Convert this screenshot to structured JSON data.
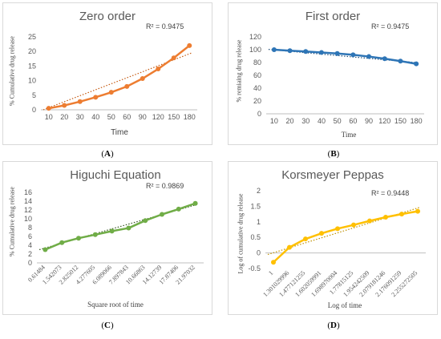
{
  "chart_data": [
    {
      "id": "A",
      "type": "line",
      "title": "Zero order",
      "r2_text": "R² = 0.9475",
      "xlabel": "Time",
      "ylabel": "% Cumulative drug release",
      "categories": [
        "10",
        "20",
        "30",
        "40",
        "50",
        "60",
        "90",
        "120",
        "150",
        "180"
      ],
      "series": [
        {
          "values": [
            0.5,
            1.5,
            2.8,
            4.3,
            6.0,
            8.0,
            10.7,
            14.0,
            17.8,
            22.0
          ]
        }
      ],
      "ylim": [
        0,
        25
      ],
      "yticks": [
        0,
        5,
        10,
        15,
        20,
        25
      ],
      "trendline": [
        0.0,
        19.5
      ],
      "color": "#ed7d31",
      "trend_color": "#c55a11",
      "grid": false,
      "caption": "A"
    },
    {
      "id": "B",
      "type": "line",
      "title": "First order",
      "r2_text": "R² = 0.9475",
      "xlabel": "Time",
      "ylabel": "% remiaing drug release",
      "categories": [
        "10",
        "20",
        "30",
        "40",
        "50",
        "60",
        "90",
        "120",
        "150",
        "180"
      ],
      "series": [
        {
          "values": [
            100,
            98.5,
            97.2,
            95.7,
            94.0,
            92.0,
            89.3,
            86.0,
            82.2,
            78.0
          ]
        }
      ],
      "ylim": [
        0,
        120
      ],
      "yticks": [
        0,
        20,
        40,
        60,
        80,
        100,
        120
      ],
      "trendline": [
        100.5,
        79.5
      ],
      "color": "#2e75b6",
      "trend_color": "#1f4e79",
      "grid": false,
      "caption": "B"
    },
    {
      "id": "C",
      "type": "line",
      "title": "Higuchi Equation",
      "r2_text": "R² = 0.9869",
      "xlabel": "Square root of time",
      "ylabel": "% Cumulative drug release",
      "categories": [
        "0.61484",
        "1.542073",
        "2.825012",
        "4.277605",
        "6.089066",
        "7.897843",
        "10.66863",
        "14.12739",
        "17.87406",
        "21.97032"
      ],
      "series": [
        {
          "values": [
            3.0,
            4.6,
            5.6,
            6.4,
            7.2,
            7.9,
            9.6,
            11.0,
            12.2,
            13.5
          ]
        }
      ],
      "ylim": [
        0,
        16
      ],
      "yticks": [
        0,
        2,
        4,
        6,
        8,
        10,
        12,
        14,
        16
      ],
      "trendline": [
        3.0,
        13.3
      ],
      "color": "#70ad47",
      "trend_color": "#375623",
      "grid": false,
      "caption": "C"
    },
    {
      "id": "D",
      "type": "line",
      "title": "Korsmeyer Peppas",
      "r2_text": "R² = 0.9448",
      "xlabel": "Log of time",
      "ylabel": "Log of cumulative drug release",
      "categories": [
        "1",
        "1.301029996",
        "1.477121255",
        "1.602059991",
        "1.698970004",
        "1.77815125",
        "1.954242509",
        "2.079181246",
        "2.176091259",
        "2.255272505"
      ],
      "series": [
        {
          "values": [
            -0.3,
            0.18,
            0.45,
            0.63,
            0.78,
            0.9,
            1.03,
            1.15,
            1.25,
            1.34
          ]
        }
      ],
      "ylim": [
        -0.5,
        2
      ],
      "yticks": [
        -0.5,
        0,
        0.5,
        1,
        1.5,
        2
      ],
      "trendline": [
        -0.05,
        1.47
      ],
      "color": "#ffc000",
      "trend_color": "#bf9000",
      "grid": false,
      "caption": "D"
    }
  ]
}
